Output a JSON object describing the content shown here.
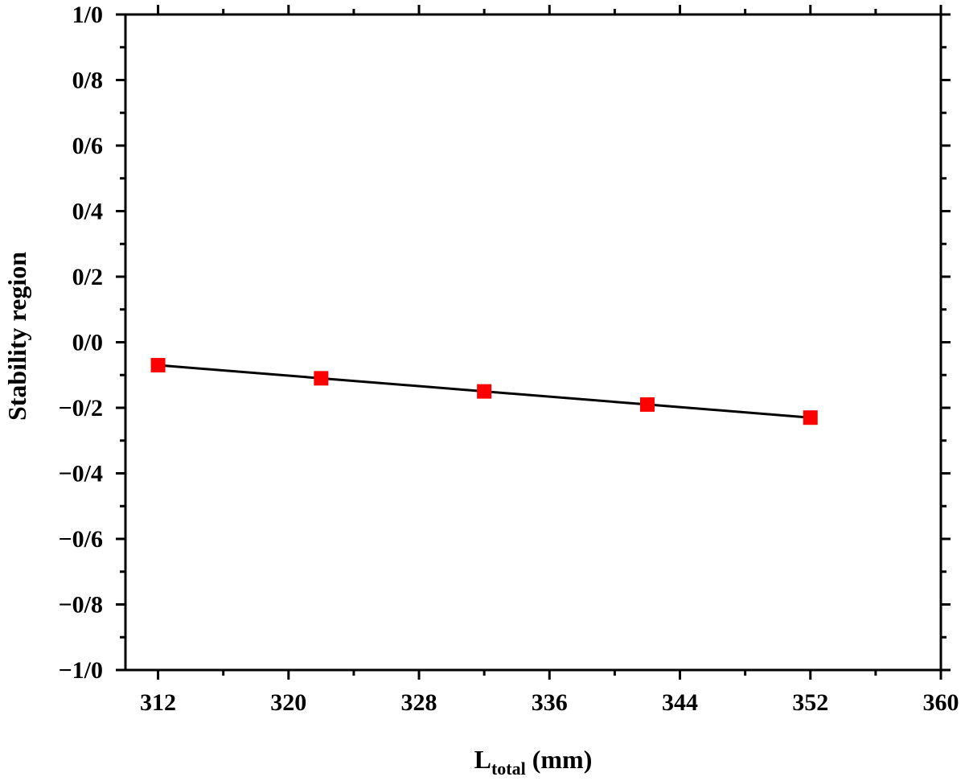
{
  "chart_data": {
    "type": "line",
    "title": "",
    "xlabel": {
      "main": "L",
      "subscript": "total",
      "suffix": " (mm)"
    },
    "ylabel": "Stability region",
    "xlim": [
      310,
      360
    ],
    "ylim": [
      -1.0,
      1.0
    ],
    "x_ticks": [
      312,
      320,
      328,
      336,
      344,
      352,
      360
    ],
    "x_tick_labels": [
      "312",
      "320",
      "328",
      "336",
      "344",
      "352",
      "360"
    ],
    "y_ticks": [
      1.0,
      0.8,
      0.6,
      0.4,
      0.2,
      0.0,
      -0.2,
      -0.4,
      -0.6,
      -0.8,
      -1.0
    ],
    "y_tick_labels": [
      "1/0",
      "0/8",
      "0/6",
      "0/4",
      "0/2",
      "0/0",
      "−0/2",
      "−0/4",
      "−0/6",
      "−0/8",
      "−1/0"
    ],
    "grid": false,
    "legend": "none",
    "series": [
      {
        "x": [
          312,
          322,
          332,
          342,
          352
        ],
        "y": [
          -0.07,
          -0.11,
          -0.15,
          -0.19,
          -0.23
        ],
        "marker": "square",
        "marker_color": "#ff0000",
        "line_color": "#000000"
      }
    ]
  }
}
